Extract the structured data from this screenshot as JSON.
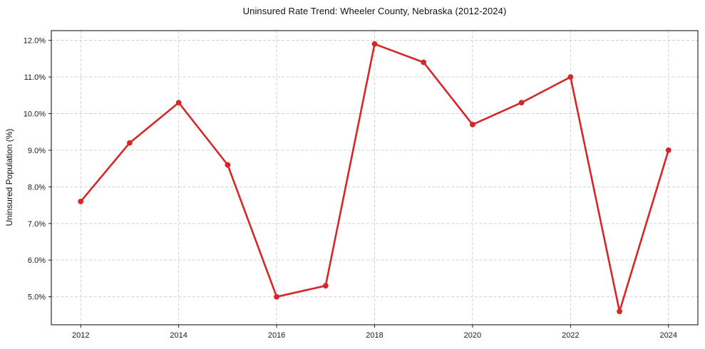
{
  "chart_data": {
    "type": "line",
    "title": "Uninsured Rate Trend: Wheeler County, Nebraska (2012-2024)",
    "xlabel": "",
    "ylabel": "Uninsured Population (%)",
    "x": [
      2012,
      2013,
      2014,
      2015,
      2016,
      2017,
      2018,
      2019,
      2020,
      2021,
      2022,
      2023,
      2024
    ],
    "values": [
      7.6,
      9.2,
      10.3,
      8.6,
      5.0,
      5.3,
      11.9,
      11.4,
      9.7,
      10.3,
      11.0,
      4.6,
      9.0
    ],
    "series_name": "Uninsured population (%)",
    "xticks": [
      2012,
      2014,
      2016,
      2018,
      2020,
      2022,
      2024
    ],
    "xtick_labels": [
      "2012",
      "2014",
      "2016",
      "2018",
      "2020",
      "2022",
      "2024"
    ],
    "yticks": [
      5,
      6,
      7,
      8,
      9,
      10,
      11,
      12
    ],
    "ytick_labels": [
      "5.0%",
      "6.0%",
      "7.0%",
      "8.0%",
      "9.0%",
      "10.0%",
      "11.0%",
      "12.0%"
    ],
    "xlim": [
      2011.4,
      2024.6
    ],
    "ylim": [
      4.235,
      12.265
    ],
    "grid": true,
    "grid_style": "dashed",
    "legend": false,
    "line_color": "#d62728",
    "marker": "circle",
    "background": "#ffffff"
  }
}
